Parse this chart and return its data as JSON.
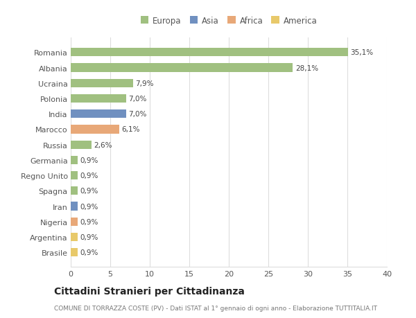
{
  "categories": [
    "Brasile",
    "Argentina",
    "Nigeria",
    "Iran",
    "Spagna",
    "Regno Unito",
    "Germania",
    "Russia",
    "Marocco",
    "India",
    "Polonia",
    "Ucraina",
    "Albania",
    "Romania"
  ],
  "values": [
    0.9,
    0.9,
    0.9,
    0.9,
    0.9,
    0.9,
    0.9,
    2.6,
    6.1,
    7.0,
    7.0,
    7.9,
    28.1,
    35.1
  ],
  "labels": [
    "0,9%",
    "0,9%",
    "0,9%",
    "0,9%",
    "0,9%",
    "0,9%",
    "0,9%",
    "2,6%",
    "6,1%",
    "7,0%",
    "7,0%",
    "7,9%",
    "28,1%",
    "35,1%"
  ],
  "colors": [
    "#e8c96a",
    "#e8c96a",
    "#e8a878",
    "#7090c0",
    "#a0c080",
    "#a0c080",
    "#a0c080",
    "#a0c080",
    "#e8a878",
    "#7090c0",
    "#a0c080",
    "#a0c080",
    "#a0c080",
    "#a0c080"
  ],
  "legend_labels": [
    "Europa",
    "Asia",
    "Africa",
    "America"
  ],
  "legend_colors": [
    "#a0c080",
    "#7090c0",
    "#e8a878",
    "#e8c96a"
  ],
  "title": "Cittadini Stranieri per Cittadinanza",
  "subtitle": "COMUNE DI TORRAZZA COSTE (PV) - Dati ISTAT al 1° gennaio di ogni anno - Elaborazione TUTTITALIA.IT",
  "xlim": [
    0,
    40
  ],
  "xticks": [
    0,
    5,
    10,
    15,
    20,
    25,
    30,
    35,
    40
  ],
  "bg_color": "#ffffff",
  "plot_bg_color": "#ffffff",
  "bar_height": 0.55,
  "grid_color": "#dddddd",
  "label_fontsize": 7.5,
  "tick_fontsize": 8,
  "title_fontsize": 10,
  "subtitle_fontsize": 6.5,
  "legend_fontsize": 8.5
}
